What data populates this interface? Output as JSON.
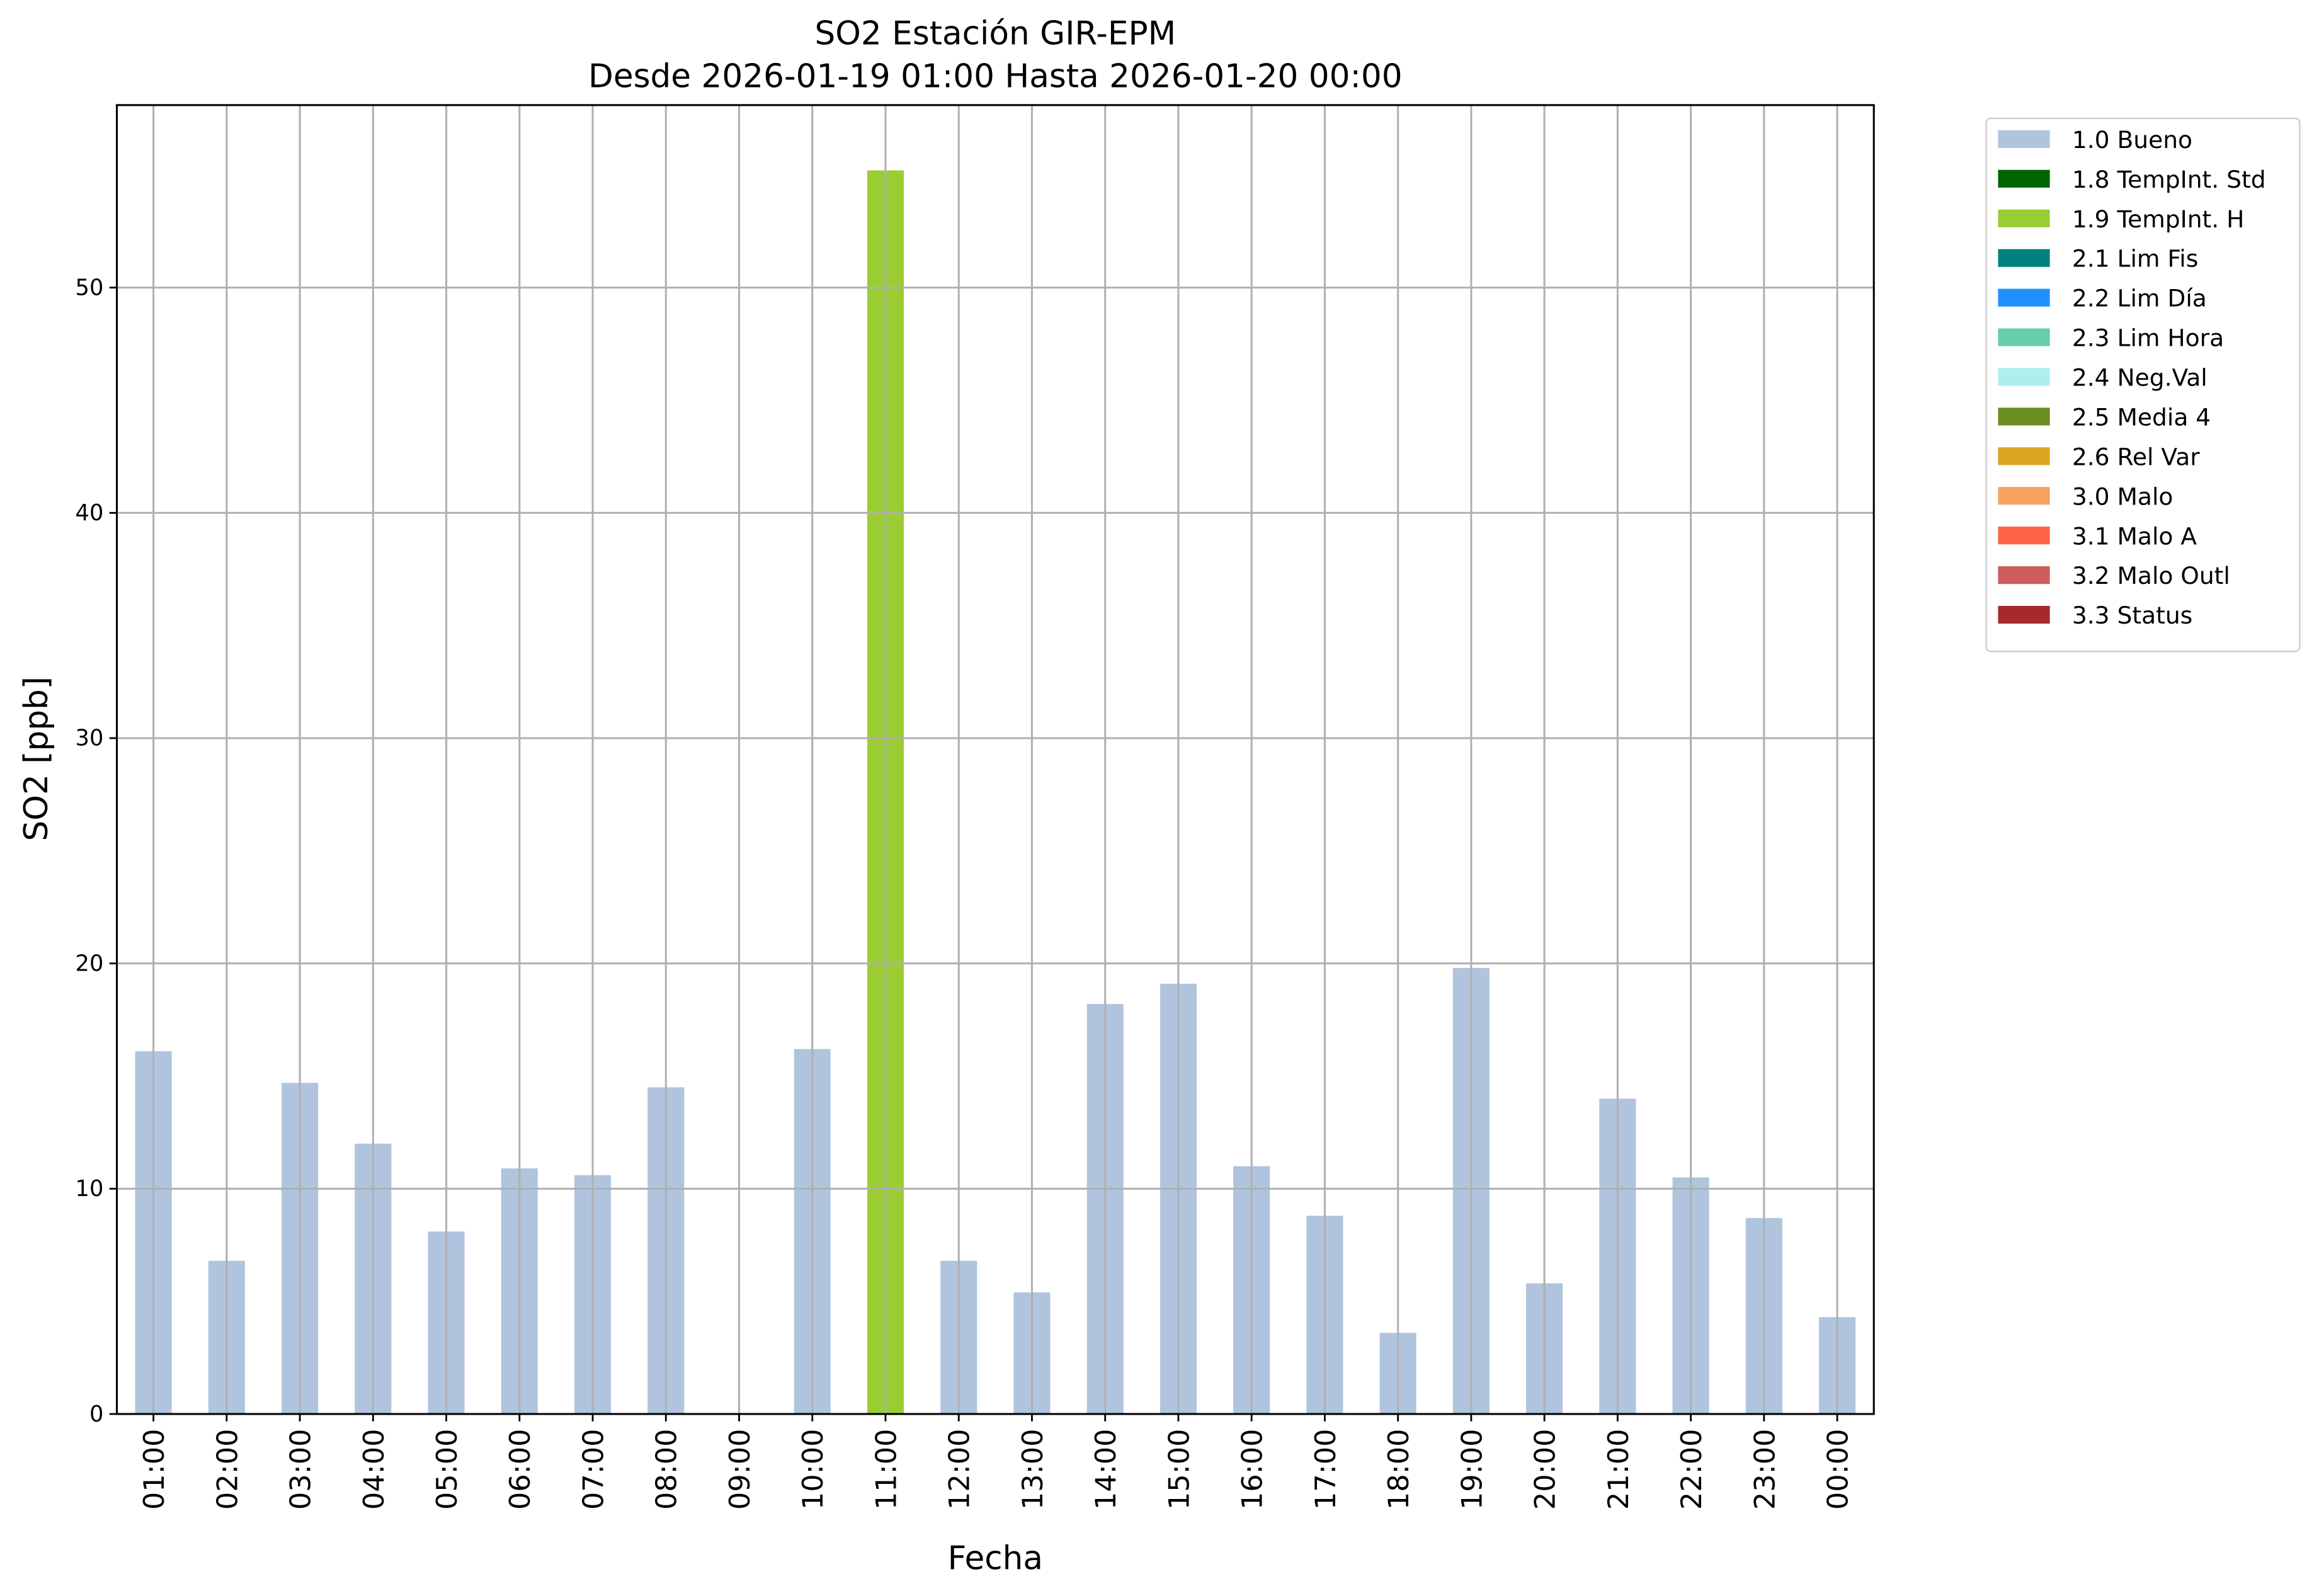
{
  "chart_data": {
    "type": "bar",
    "stacked": true,
    "title": "SO2 Estación GIR-EPM",
    "subtitle": "Desde 2026-01-19 01:00 Hasta 2026-01-20 00:00",
    "x_label": "Fecha",
    "y_label": "SO2 [ppb]",
    "categories": [
      "01:00",
      "02:00",
      "03:00",
      "04:00",
      "05:00",
      "06:00",
      "07:00",
      "08:00",
      "09:00",
      "10:00",
      "11:00",
      "12:00",
      "13:00",
      "14:00",
      "15:00",
      "16:00",
      "17:00",
      "18:00",
      "19:00",
      "20:00",
      "21:00",
      "22:00",
      "23:00",
      "00:00"
    ],
    "series": [
      {
        "name": "1.0 Bueno",
        "color": "#b0c4de",
        "values": [
          16.1,
          6.8,
          14.7,
          12.0,
          8.1,
          10.9,
          10.6,
          14.5,
          null,
          16.2,
          null,
          6.8,
          5.4,
          18.2,
          19.1,
          11.0,
          8.8,
          3.6,
          19.8,
          5.8,
          14.0,
          10.5,
          8.7,
          4.3
        ]
      },
      {
        "name": "1.8 TempInt. Std",
        "color": "#006400",
        "values": [
          null,
          null,
          null,
          null,
          null,
          null,
          null,
          null,
          null,
          null,
          null,
          null,
          null,
          null,
          null,
          null,
          null,
          null,
          null,
          null,
          null,
          null,
          null,
          null
        ]
      },
      {
        "name": "1.9 TempInt. H",
        "color": "#9acd32",
        "values": [
          null,
          null,
          null,
          null,
          null,
          null,
          null,
          null,
          null,
          null,
          55.2,
          null,
          null,
          null,
          null,
          null,
          null,
          null,
          null,
          null,
          null,
          null,
          null,
          null
        ]
      },
      {
        "name": "2.1 Lim Fis",
        "color": "#008080",
        "values": [
          null,
          null,
          null,
          null,
          null,
          null,
          null,
          null,
          null,
          null,
          null,
          null,
          null,
          null,
          null,
          null,
          null,
          null,
          null,
          null,
          null,
          null,
          null,
          null
        ]
      },
      {
        "name": "2.2 Lim Día",
        "color": "#1e90ff",
        "values": [
          null,
          null,
          null,
          null,
          null,
          null,
          null,
          null,
          null,
          null,
          null,
          null,
          null,
          null,
          null,
          null,
          null,
          null,
          null,
          null,
          null,
          null,
          null,
          null
        ]
      },
      {
        "name": "2.3 Lim Hora",
        "color": "#66cdaa",
        "values": [
          null,
          null,
          null,
          null,
          null,
          null,
          null,
          null,
          null,
          null,
          null,
          null,
          null,
          null,
          null,
          null,
          null,
          null,
          null,
          null,
          null,
          null,
          null,
          null
        ]
      },
      {
        "name": "2.4 Neg.Val",
        "color": "#afeeee",
        "values": [
          null,
          null,
          null,
          null,
          null,
          null,
          null,
          null,
          null,
          null,
          null,
          null,
          null,
          null,
          null,
          null,
          null,
          null,
          null,
          null,
          null,
          null,
          null,
          null
        ]
      },
      {
        "name": "2.5 Media 4",
        "color": "#6b8e23",
        "values": [
          null,
          null,
          null,
          null,
          null,
          null,
          null,
          null,
          null,
          null,
          null,
          null,
          null,
          null,
          null,
          null,
          null,
          null,
          null,
          null,
          null,
          null,
          null,
          null
        ]
      },
      {
        "name": "2.6 Rel Var",
        "color": "#daa520",
        "values": [
          null,
          null,
          null,
          null,
          null,
          null,
          null,
          null,
          null,
          null,
          null,
          null,
          null,
          null,
          null,
          null,
          null,
          null,
          null,
          null,
          null,
          null,
          null,
          null
        ]
      },
      {
        "name": "3.0 Malo",
        "color": "#f4a460",
        "values": [
          null,
          null,
          null,
          null,
          null,
          null,
          null,
          null,
          null,
          null,
          null,
          null,
          null,
          null,
          null,
          null,
          null,
          null,
          null,
          null,
          null,
          null,
          null,
          null
        ]
      },
      {
        "name": "3.1 Malo A",
        "color": "#ff6347",
        "values": [
          null,
          null,
          null,
          null,
          null,
          null,
          null,
          null,
          null,
          null,
          null,
          null,
          null,
          null,
          null,
          null,
          null,
          null,
          null,
          null,
          null,
          null,
          null,
          null
        ]
      },
      {
        "name": "3.2 Malo Outl",
        "color": "#cd5c5c",
        "values": [
          null,
          null,
          null,
          null,
          null,
          null,
          null,
          null,
          null,
          null,
          null,
          null,
          null,
          null,
          null,
          null,
          null,
          null,
          null,
          null,
          null,
          null,
          null,
          null
        ]
      },
      {
        "name": "3.3 Status",
        "color": "#a52a2a",
        "values": [
          null,
          null,
          null,
          null,
          null,
          null,
          null,
          null,
          null,
          null,
          null,
          null,
          null,
          null,
          null,
          null,
          null,
          null,
          null,
          null,
          null,
          null,
          null,
          null
        ]
      }
    ],
    "ylim": [
      0,
      58.1
    ],
    "yticks": [
      0,
      10,
      20,
      30,
      40,
      50
    ],
    "grid": true,
    "legend": "outside right"
  }
}
